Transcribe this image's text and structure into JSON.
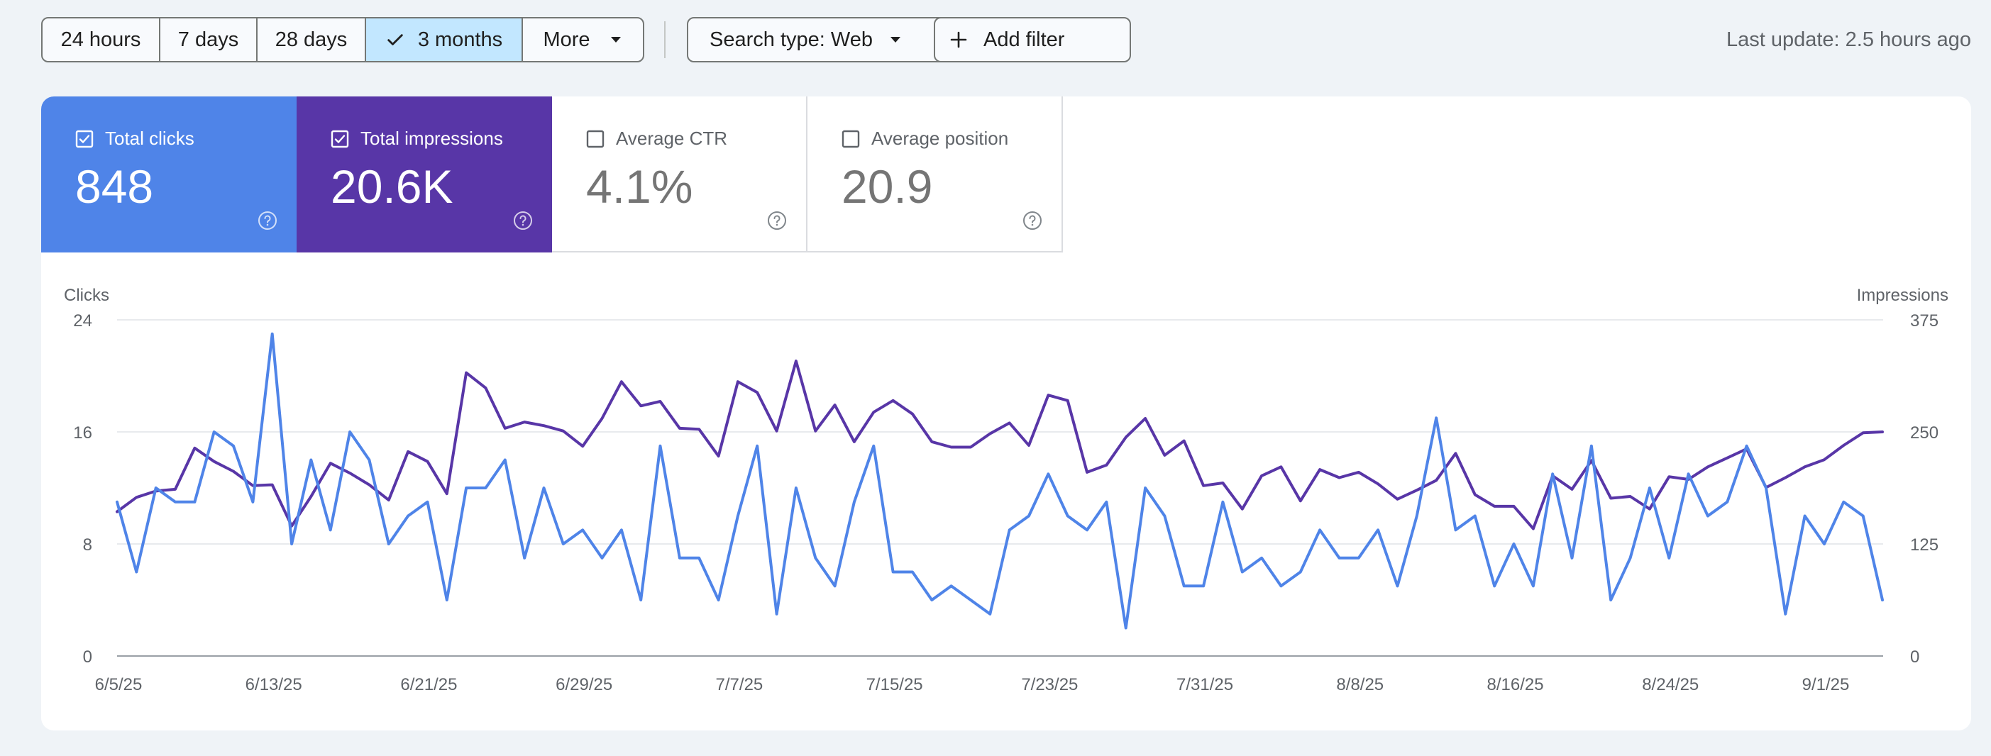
{
  "filters": {
    "date_ranges": [
      {
        "label": "24 hours",
        "active": false
      },
      {
        "label": "7 days",
        "active": false
      },
      {
        "label": "28 days",
        "active": false
      },
      {
        "label": "3 months",
        "active": true
      },
      {
        "label": "More",
        "active": false
      }
    ],
    "search_type": "Search type: Web",
    "add_filter": "Add filter",
    "last_update": "Last update: 2.5 hours ago"
  },
  "metrics": [
    {
      "label": "Total clicks",
      "value": "848",
      "checked": true,
      "color": "#4f84e8"
    },
    {
      "label": "Total impressions",
      "value": "20.6K",
      "checked": true,
      "color": "#5836a7"
    },
    {
      "label": "Average CTR",
      "value": "4.1%",
      "checked": false
    },
    {
      "label": "Average position",
      "value": "20.9",
      "checked": false
    }
  ],
  "icons": {
    "checkmark": "check-icon",
    "dropdown": "caret-down-icon",
    "add": "plus-icon",
    "checkbox_checked": "checkbox-checked-icon",
    "checkbox_empty": "checkbox-empty-icon",
    "help": "help-circle-icon"
  },
  "chart_data": {
    "type": "line",
    "x_tick_labels": [
      "6/5/25",
      "6/13/25",
      "6/21/25",
      "6/29/25",
      "7/7/25",
      "7/15/25",
      "7/23/25",
      "7/31/25",
      "8/8/25",
      "8/16/25",
      "8/24/25",
      "9/1/25"
    ],
    "x_start": "6/5/25",
    "y_left": {
      "label": "Clicks",
      "ticks": [
        "0",
        "8",
        "16",
        "24"
      ],
      "range": [
        0,
        24
      ]
    },
    "y_right": {
      "label": "Impressions",
      "ticks": [
        "0",
        "125",
        "250",
        "375"
      ],
      "range": [
        0,
        375
      ]
    },
    "grid": true,
    "series": [
      {
        "name": "Clicks",
        "axis": "left",
        "color": "#4f84e8",
        "values": [
          11,
          6,
          12,
          11,
          11,
          16,
          15,
          11,
          23,
          8,
          14,
          9,
          16,
          14,
          8,
          10,
          11,
          4,
          12,
          12,
          14,
          7,
          12,
          8,
          9,
          7,
          9,
          4,
          15,
          7,
          7,
          4,
          10,
          15,
          3,
          12,
          7,
          5,
          11,
          15,
          6,
          6,
          4,
          5,
          4,
          3,
          9,
          10,
          13,
          10,
          9,
          11,
          2,
          12,
          10,
          5,
          5,
          11,
          6,
          7,
          5,
          6,
          9,
          7,
          7,
          9,
          5,
          10,
          17,
          9,
          10,
          5,
          8,
          5,
          13,
          7,
          15,
          4,
          7,
          12,
          7,
          13,
          10,
          11,
          15,
          12,
          3,
          10,
          8,
          11,
          10,
          4
        ]
      },
      {
        "name": "Impressions",
        "axis": "right",
        "color": "#5836a7",
        "values": [
          161,
          177,
          184,
          186,
          232,
          217,
          206,
          190,
          191,
          145,
          178,
          215,
          204,
          191,
          174,
          228,
          217,
          181,
          316,
          299,
          254,
          261,
          257,
          251,
          234,
          265,
          306,
          279,
          284,
          254,
          253,
          223,
          306,
          294,
          251,
          329,
          251,
          280,
          239,
          272,
          285,
          270,
          239,
          233,
          233,
          248,
          260,
          235,
          291,
          285,
          205,
          213,
          244,
          265,
          224,
          240,
          190,
          193,
          164,
          201,
          211,
          173,
          208,
          199,
          205,
          192,
          175,
          185,
          196,
          226,
          180,
          167,
          167,
          142,
          201,
          186,
          218,
          176,
          178,
          164,
          200,
          197,
          211,
          221,
          231,
          188,
          199,
          211,
          219,
          235,
          249,
          250
        ]
      }
    ]
  }
}
